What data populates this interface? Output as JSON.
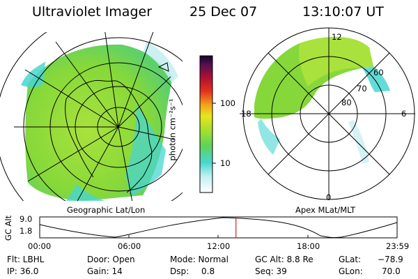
{
  "header": {
    "instrument": "Ultraviolet Imager",
    "date": "25 Dec 07",
    "time": "13:10:07 UT"
  },
  "geo_panel": {
    "label": "Geographic Lat/Lon"
  },
  "apex_panel": {
    "label": "Apex MLat/MLT",
    "mlt_labels": [
      "12",
      "18",
      "6",
      "0"
    ],
    "lat_labels": [
      "60",
      "70",
      "80"
    ]
  },
  "colorbar": {
    "title": "photon cm⁻²s⁻¹",
    "ticks": [
      "100",
      "10"
    ]
  },
  "timeline": {
    "ylabel": "GC Alt",
    "ytick_top": "9.0",
    "ytick_bottom": "1.8",
    "xticks": [
      "00:00",
      "06:00",
      "12:00",
      "18:00",
      "23:59"
    ],
    "current_time_hours": 13.17
  },
  "info": {
    "flt": "Flt: LBHL",
    "ip": "IP: 36.0",
    "door": "Door: Open",
    "gain": "Gain: 14",
    "mode": "Mode: Normal",
    "dsp": "Dsp:",
    "dsp_val": "0.8",
    "gcalt": "GC Alt: 8.8 Re",
    "seq": "Seq: 39",
    "glat": "GLat:",
    "glat_val": "−78.9",
    "glon": "GLon:",
    "glon_val": "70.0"
  },
  "colors": {
    "aurora_green": "#7ed63a",
    "aurora_cyan": "#48d6d0",
    "timeline_marker": "#d42020"
  }
}
